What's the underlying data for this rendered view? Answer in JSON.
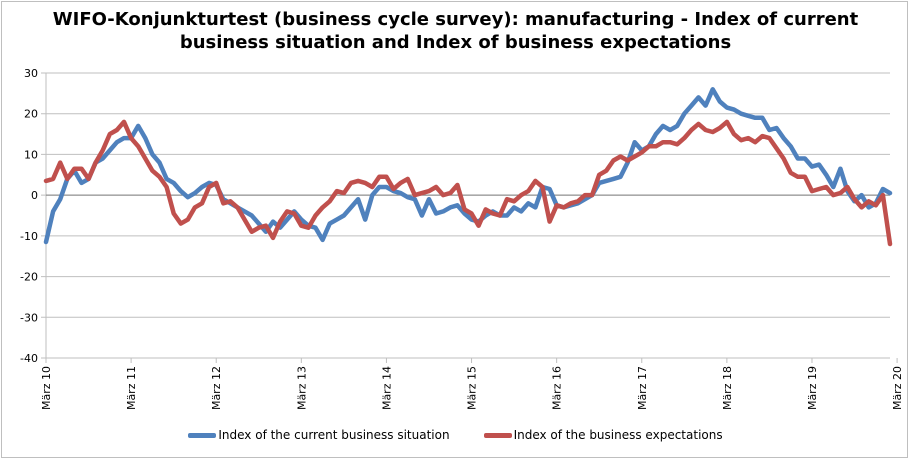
{
  "chart_data": {
    "type": "line",
    "title": "WIFO-Konjunkturtest (business cycle survey): manufacturing - Index of current business situation and Index of business expectations",
    "title_lines": [
      "WIFO-Konjunkturtest (business cycle survey): manufacturing - Index of current",
      "business situation and Index of business expectations"
    ],
    "xlabel": "",
    "ylabel": "",
    "ylim": [
      -40,
      30
    ],
    "yticks": [
      -40,
      -30,
      -20,
      -10,
      0,
      10,
      20,
      30
    ],
    "x_tick_labels": [
      "März 10",
      "März 11",
      "März 12",
      "März 13",
      "März 14",
      "März 15",
      "März 16",
      "März 17",
      "März 18",
      "März 19",
      "März 20"
    ],
    "x_tick_index": [
      0,
      12,
      24,
      36,
      48,
      60,
      72,
      84,
      96,
      108,
      120
    ],
    "grid": "horizontal",
    "legend_position": "bottom",
    "series": [
      {
        "name": "Index of the current business situation",
        "color": "#4f81bd",
        "values": [
          -11.5,
          -4,
          -1,
          4,
          6,
          3,
          4,
          8,
          9,
          11,
          13,
          14,
          14,
          17,
          14,
          10,
          8,
          4,
          3,
          1,
          -0.5,
          0.5,
          2,
          3,
          2.5,
          -1,
          -2,
          -3,
          -4,
          -5,
          -7,
          -9,
          -6.5,
          -8,
          -6,
          -4,
          -6,
          -7.5,
          -8,
          -11,
          -7,
          -6,
          -5,
          -3,
          -1,
          -6,
          0,
          2,
          2,
          1,
          0.5,
          -0.5,
          -1,
          -5,
          -1,
          -4.5,
          -4,
          -3,
          -2.5,
          -4.5,
          -6,
          -6.5,
          -5,
          -4,
          -5,
          -5,
          -3,
          -4,
          -2,
          -3,
          2,
          1.5,
          -2.5,
          -3,
          -2.5,
          -2,
          -1,
          0,
          3,
          3.5,
          4,
          4.5,
          8,
          13,
          11,
          12,
          15,
          17,
          16,
          17,
          20,
          22,
          24,
          22,
          26,
          23,
          21.5,
          21,
          20,
          19.5,
          19,
          19,
          16,
          16.5,
          14,
          12,
          9,
          9,
          7,
          7.5,
          5,
          2,
          6.5,
          1,
          -1.5,
          0,
          -3,
          -2,
          1.5,
          0.5
        ]
      },
      {
        "name": "Index of the business expectations",
        "color": "#c0504d",
        "values": [
          3.5,
          4,
          8,
          4,
          6.5,
          6.5,
          4,
          8,
          11,
          15,
          16,
          18,
          14,
          12,
          9,
          6,
          4.5,
          2,
          -4.5,
          -7,
          -6,
          -3,
          -2,
          2,
          3,
          -2,
          -1.5,
          -3,
          -6,
          -9,
          -8,
          -7.5,
          -10.5,
          -6.5,
          -4,
          -4.5,
          -7.5,
          -8,
          -5,
          -3,
          -1.5,
          1,
          0.5,
          3,
          3.5,
          3,
          2,
          4.5,
          4.5,
          1.5,
          3,
          4,
          0,
          0.5,
          1,
          2,
          0,
          0.5,
          2.5,
          -3.5,
          -4.5,
          -7.5,
          -3.5,
          -4.5,
          -5,
          -1,
          -1.5,
          0,
          1,
          3.5,
          2,
          -6.5,
          -2.5,
          -3,
          -2,
          -1.5,
          0,
          0,
          5,
          6,
          8.5,
          9.5,
          8.5,
          9.5,
          10.5,
          12,
          12,
          13,
          13,
          12.5,
          14,
          16,
          17.5,
          16,
          15.5,
          16.5,
          18,
          15,
          13.5,
          14,
          13,
          14.5,
          14,
          11.5,
          9,
          5.5,
          4.5,
          4.5,
          1,
          1.5,
          2,
          0,
          0.5,
          2,
          -1,
          -3,
          -1.5,
          -2.5,
          0,
          -12
        ]
      }
    ]
  }
}
